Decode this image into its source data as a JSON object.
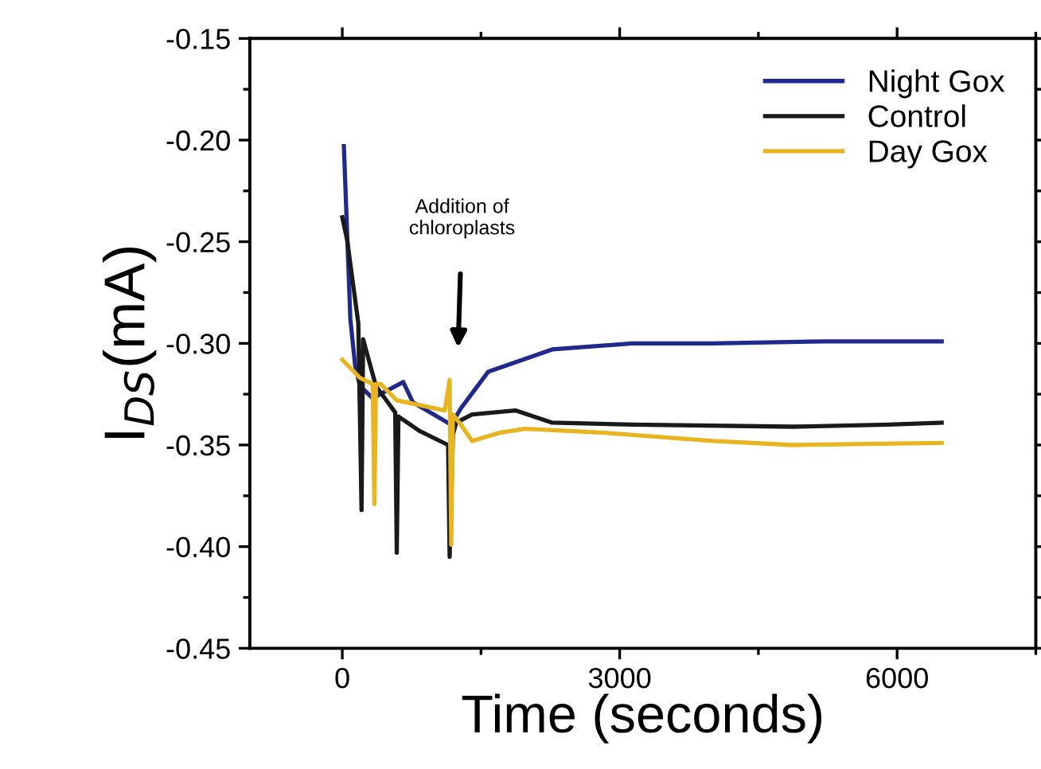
{
  "chart_data": {
    "type": "line",
    "xlabel": "Time (seconds)",
    "ylabel": "I$_{DS}$(mA)",
    "xlim": [
      -1000,
      7500
    ],
    "xticks": [
      0,
      3000,
      6000
    ],
    "ylim": [
      -0.45,
      -0.15
    ],
    "yticks": [
      {
        "value": -0.45,
        "label": "-0.45"
      },
      {
        "value": -0.4,
        "label": "-0.40"
      },
      {
        "value": -0.35,
        "label": "-0.35"
      },
      {
        "value": -0.3,
        "label": "-0.30"
      },
      {
        "value": -0.25,
        "label": "-0.25"
      },
      {
        "value": -0.2,
        "label": "-0.20"
      },
      {
        "value": -0.15,
        "label": "-0.15"
      }
    ],
    "legend": "top right",
    "grid": false,
    "marker": "none",
    "line_style": "solid",
    "annotations": [
      "Addition of\nchloroplasts"
    ],
    "series": [
      {
        "name": "Night Gox",
        "color": "#1f2a8c",
        "x": [
          17,
          87,
          139,
          191,
          329,
          659,
          763,
          1178,
          1282,
          1577,
          2270,
          3137,
          4003,
          5217,
          6482
        ],
        "values": [
          -0.203,
          -0.288,
          -0.311,
          -0.321,
          -0.327,
          -0.319,
          -0.329,
          -0.34,
          -0.332,
          -0.314,
          -0.303,
          -0.3,
          -0.3,
          -0.299,
          -0.299
        ]
      },
      {
        "name": "Control",
        "color": "#1a1a1a",
        "x": [
          0,
          52,
          173,
          208,
          225,
          364,
          572,
          589,
          607,
          832,
          1144,
          1161,
          1196,
          1231,
          1404,
          1872,
          2270,
          3137,
          4870,
          5910,
          6482
        ],
        "values": [
          -0.238,
          -0.249,
          -0.29,
          -0.382,
          -0.298,
          -0.321,
          -0.334,
          -0.403,
          -0.336,
          -0.343,
          -0.35,
          -0.405,
          -0.345,
          -0.339,
          -0.335,
          -0.333,
          -0.339,
          -0.34,
          -0.341,
          -0.34,
          -0.339
        ]
      },
      {
        "name": "Day Gox",
        "color": "#e8b420",
        "x": [
          0,
          191,
          329,
          347,
          364,
          416,
          589,
          1109,
          1161,
          1178,
          1196,
          1282,
          1404,
          1698,
          1976,
          2842,
          4003,
          4870,
          6482
        ],
        "values": [
          -0.308,
          -0.317,
          -0.32,
          -0.379,
          -0.32,
          -0.32,
          -0.328,
          -0.333,
          -0.318,
          -0.399,
          -0.335,
          -0.34,
          -0.348,
          -0.344,
          -0.342,
          -0.344,
          -0.348,
          -0.35,
          -0.349
        ]
      }
    ]
  }
}
